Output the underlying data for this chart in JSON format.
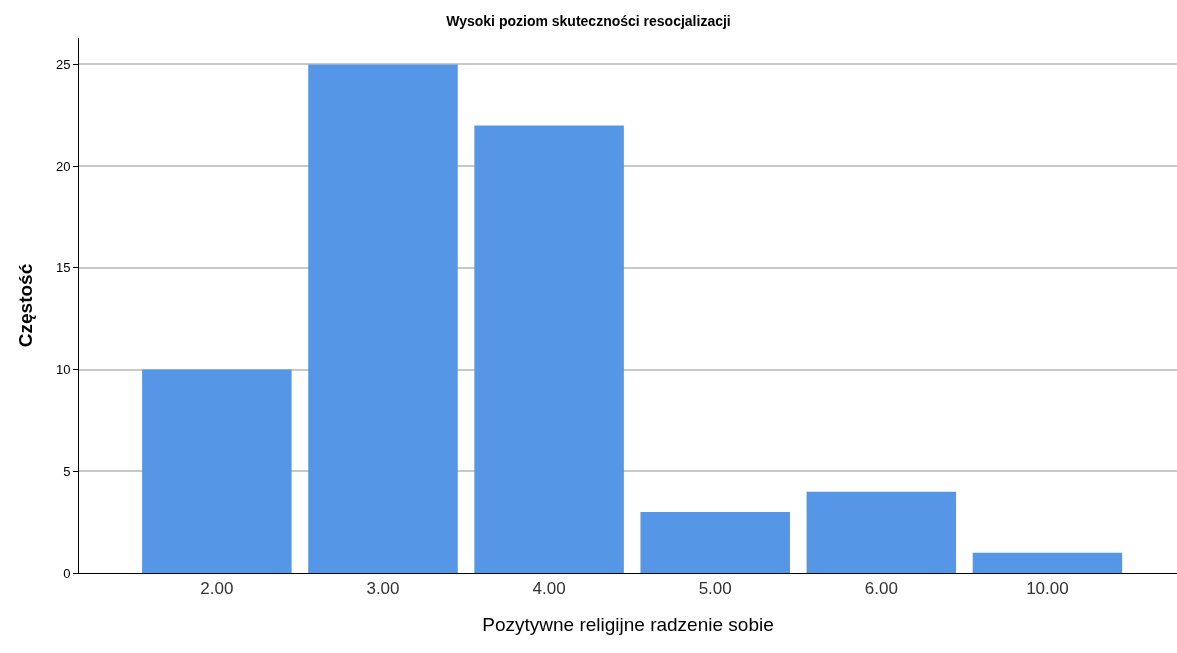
{
  "chart_data": {
    "type": "bar",
    "title": "Wysoki poziom skuteczności resocjalizacji",
    "xlabel": "Pozytywne religijne radzenie sobie",
    "ylabel": "Częstość",
    "categories": [
      "2.00",
      "3.00",
      "4.00",
      "5.00",
      "6.00",
      "10.00"
    ],
    "values": [
      10,
      25,
      22,
      3,
      4,
      1
    ],
    "color": "#5596e6",
    "ylim": [
      0,
      26.3
    ],
    "yticks": [
      0,
      5,
      10,
      15,
      20,
      25
    ],
    "grid": "y"
  }
}
